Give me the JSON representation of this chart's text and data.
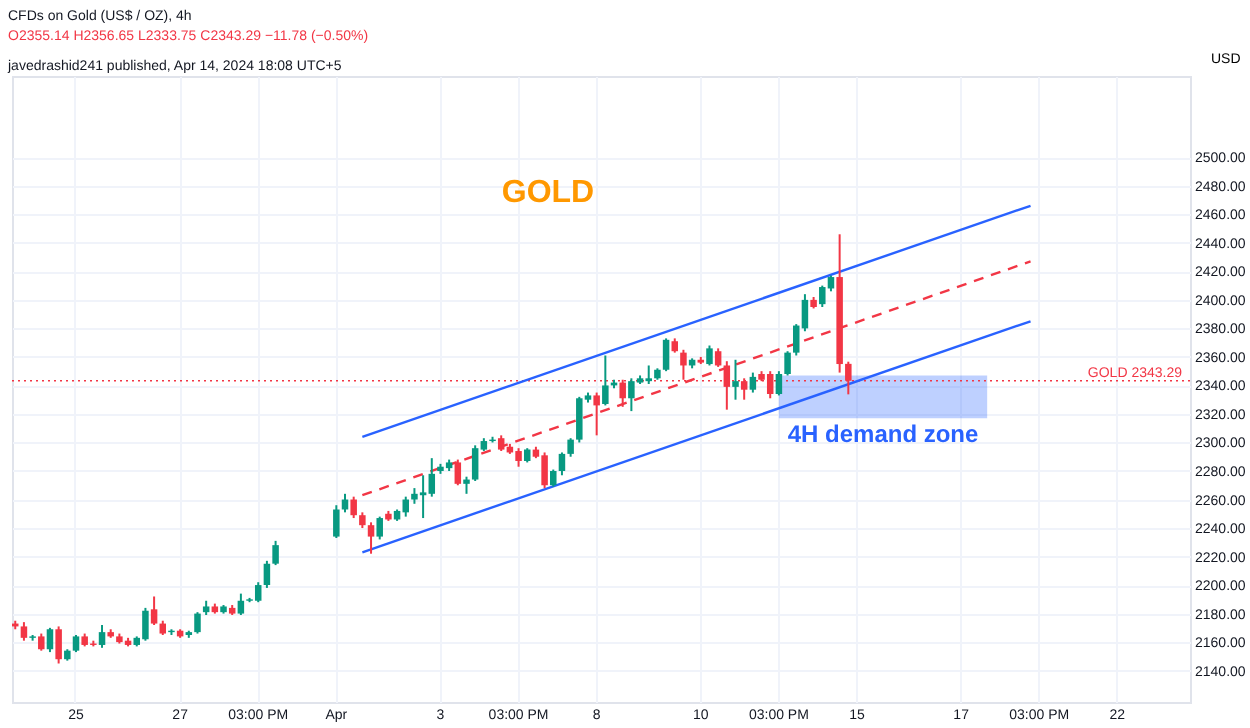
{
  "chart_data": {
    "type": "candlestick",
    "title": "CFDs on Gold (US$ / OZ), 4h",
    "subtitle": "O2355.14 H2356.65 L2333.75 C2343.29 −11.78 (−0.50%)",
    "ylabel": "USD",
    "annotations": [
      "javedrashid241 published, Apr 14, 2024 18:08 UTC+5",
      "GOLD"
    ],
    "categories": [
      null,
      null,
      null,
      null,
      null,
      null,
      null,
      "25",
      null,
      null,
      null,
      null,
      null,
      null,
      null,
      null,
      null,
      null,
      null,
      "27",
      null,
      null,
      null,
      null,
      null,
      null,
      null,
      null,
      "03:00 PM",
      null,
      null,
      null,
      null,
      null,
      null,
      null,
      null,
      "Apr",
      null,
      null,
      null,
      null,
      null,
      null,
      null,
      null,
      null,
      null,
      null,
      "3",
      null,
      null,
      null,
      null,
      null,
      null,
      null,
      null,
      "03:00 PM",
      null,
      null,
      null,
      null,
      null,
      null,
      null,
      null,
      "8",
      null,
      null,
      null,
      null,
      null,
      null,
      null,
      null,
      null,
      null,
      null,
      "10",
      null,
      null,
      null,
      null,
      null,
      null,
      null,
      null,
      "03:00 PM",
      null,
      null,
      null,
      null,
      null,
      null,
      null,
      null,
      "15",
      null,
      null,
      null,
      null,
      null,
      null,
      null,
      null,
      null,
      null,
      null,
      "17",
      null,
      null,
      null,
      null,
      null,
      null,
      null,
      null,
      "03:00 PM",
      null,
      null,
      null,
      null,
      null,
      null,
      null,
      null,
      "22",
      null,
      null,
      null,
      null,
      null,
      null,
      null,
      null
    ],
    "ohlc": [
      [
        2173,
        2175,
        2169,
        2171
      ],
      [
        2171,
        2174,
        2161,
        2163
      ],
      [
        2163,
        2165,
        2161,
        2164
      ],
      [
        2164,
        2166,
        2154,
        2155
      ],
      [
        2155,
        2170,
        2153,
        2169
      ],
      [
        2169,
        2171,
        2145,
        2148
      ],
      [
        2148,
        2155,
        2147,
        2154
      ],
      [
        2154,
        2165,
        2153,
        2164
      ],
      [
        2164,
        2166,
        2157,
        2158
      ],
      [
        2159,
        2161,
        2157,
        2158
      ],
      [
        2158,
        2172,
        2156,
        2167
      ],
      [
        2167,
        2169,
        2163,
        2164
      ],
      [
        2164,
        2166,
        2159,
        2160
      ],
      [
        2161,
        2163,
        2157,
        2158
      ],
      [
        2158,
        2164,
        2157,
        2163
      ],
      [
        2162,
        2184,
        2161,
        2182
      ],
      [
        2183,
        2192,
        2172,
        2173
      ],
      [
        2173,
        2175,
        2165,
        2166
      ],
      [
        2167,
        2169,
        2165,
        2168
      ],
      [
        2168,
        2169,
        2163,
        2164
      ],
      [
        2165,
        2168,
        2163,
        2167
      ],
      [
        2167,
        2181,
        2166,
        2180
      ],
      [
        2181,
        2189,
        2179,
        2185
      ],
      [
        2185,
        2187,
        2180,
        2181
      ],
      [
        2181,
        2186,
        2180,
        2185
      ],
      [
        2184,
        2186,
        2179,
        2180
      ],
      [
        2180,
        2194,
        2179,
        2189
      ],
      [
        2189,
        2191,
        2188,
        2190
      ],
      [
        2189,
        2202,
        2188,
        2200
      ],
      [
        2200,
        2217,
        2198,
        2215
      ],
      [
        2215,
        2231,
        2214,
        2228
      ],
      null,
      null,
      null,
      null,
      null,
      null,
      [
        2234,
        2256,
        2233,
        2253
      ],
      [
        2253,
        2264,
        2251,
        2260
      ],
      [
        2260,
        2262,
        2247,
        2249
      ],
      [
        2249,
        2251,
        2240,
        2242
      ],
      [
        2242,
        2244,
        2222,
        2234
      ],
      [
        2234,
        2248,
        2232,
        2247
      ],
      [
        2250,
        2252,
        2245,
        2246
      ],
      [
        2246,
        2253,
        2245,
        2252
      ],
      [
        2251,
        2262,
        2248,
        2260
      ],
      [
        2260,
        2268,
        2257,
        2264
      ],
      [
        2263,
        2277,
        2247,
        2265
      ],
      [
        2264,
        2289,
        2262,
        2278
      ],
      [
        2280,
        2285,
        2278,
        2283
      ],
      [
        2282,
        2288,
        2280,
        2286
      ],
      [
        2286,
        2288,
        2270,
        2271
      ],
      [
        2271,
        2276,
        2264,
        2274
      ],
      [
        2274,
        2298,
        2273,
        2296
      ],
      [
        2295,
        2303,
        2294,
        2301
      ],
      [
        2301,
        2304,
        2300,
        2302
      ],
      [
        2303,
        2305,
        2294,
        2295
      ],
      [
        2297,
        2299,
        2292,
        2293
      ],
      [
        2294,
        2296,
        2283,
        2287
      ],
      [
        2287,
        2296,
        2286,
        2295
      ],
      [
        2295,
        2297,
        2289,
        2290
      ],
      [
        2291,
        2293,
        2268,
        2270
      ],
      [
        2270,
        2281,
        2269,
        2280
      ],
      [
        2280,
        2293,
        2277,
        2292
      ],
      [
        2292,
        2303,
        2290,
        2302
      ],
      [
        2302,
        2332,
        2300,
        2331
      ],
      [
        2330,
        2335,
        2328,
        2333
      ],
      [
        2333,
        2335,
        2305,
        2326
      ],
      [
        2327,
        2361,
        2326,
        2340
      ],
      [
        2340,
        2344,
        2338,
        2342
      ],
      [
        2342,
        2344,
        2325,
        2331
      ],
      [
        2331,
        2345,
        2322,
        2343
      ],
      [
        2342,
        2347,
        2341,
        2345
      ],
      [
        2343,
        2354,
        2341,
        2345
      ],
      [
        2345,
        2352,
        2344,
        2351
      ],
      [
        2351,
        2373,
        2350,
        2372
      ],
      [
        2371,
        2373,
        2363,
        2364
      ],
      [
        2363,
        2365,
        2344,
        2354
      ],
      [
        2354,
        2359,
        2352,
        2358
      ],
      [
        2358,
        2360,
        2355,
        2356
      ],
      [
        2355,
        2368,
        2354,
        2366
      ],
      [
        2364,
        2366,
        2353,
        2354
      ],
      [
        2354,
        2357,
        2323,
        2339
      ],
      [
        2339,
        2358,
        2330,
        2343
      ],
      [
        2343,
        2345,
        2330,
        2337
      ],
      [
        2337,
        2349,
        2335,
        2346
      ],
      [
        2348,
        2350,
        2343,
        2344
      ],
      [
        2348,
        2350,
        2331,
        2334
      ],
      [
        2334,
        2350,
        2333,
        2348
      ],
      [
        2348,
        2364,
        2347,
        2363
      ],
      [
        2363,
        2383,
        2361,
        2382
      ],
      [
        2380,
        2404,
        2378,
        2400
      ],
      [
        2400,
        2402,
        2394,
        2395
      ],
      [
        2397,
        2410,
        2395,
        2409
      ],
      [
        2408,
        2417,
        2406,
        2416
      ],
      [
        2416,
        2446,
        2349,
        2355
      ],
      [
        2355.14,
        2356.65,
        2333.75,
        2343.29
      ],
      null,
      null,
      null,
      null,
      null,
      null,
      null,
      null,
      null,
      null,
      null,
      null,
      null,
      null,
      null,
      null,
      null,
      null,
      null,
      null,
      null,
      null,
      null,
      null,
      null,
      null,
      null,
      null,
      null,
      null,
      null,
      null,
      null,
      null,
      null,
      null,
      null,
      null,
      null
    ],
    "colors": [
      "#f23645",
      "#f23645",
      "#089981",
      "#f23645",
      "#089981",
      "#f23645",
      "#089981",
      "#089981",
      "#f23645",
      "#f23645",
      "#089981",
      "#f23645",
      "#f23645",
      "#f23645",
      "#089981",
      "#089981",
      "#f23645",
      "#f23645",
      "#089981",
      "#f23645",
      "#089981",
      "#089981",
      "#089981",
      "#f23645",
      "#089981",
      "#f23645",
      "#089981",
      "#089981",
      "#089981",
      "#089981",
      "#089981",
      null,
      null,
      null,
      null,
      null,
      null,
      "#089981",
      "#089981",
      "#f23645",
      "#f23645",
      "#f23645",
      "#089981",
      "#f23645",
      "#089981",
      "#089981",
      "#089981",
      "#089981",
      "#089981",
      "#089981",
      "#089981",
      "#f23645",
      "#089981",
      "#089981",
      "#089981",
      "#089981",
      "#f23645",
      "#f23645",
      "#f23645",
      "#089981",
      "#f23645",
      "#f23645",
      "#089981",
      "#089981",
      "#089981",
      "#089981",
      "#089981",
      "#f23645",
      "#089981",
      "#089981",
      "#f23645",
      "#089981",
      "#089981",
      "#089981",
      "#089981",
      "#089981",
      "#f23645",
      "#f23645",
      "#089981",
      "#f23645",
      "#089981",
      "#f23645",
      "#f23645",
      "#089981",
      "#f23645",
      "#089981",
      "#f23645",
      "#f23645",
      "#089981",
      "#089981",
      "#089981",
      "#089981",
      "#f23645",
      "#089981",
      "#089981",
      "#f23645",
      "#f23645",
      null,
      null,
      null,
      null,
      null,
      null,
      null,
      null,
      null,
      null,
      null,
      null,
      null,
      null,
      null,
      null,
      null,
      null,
      null,
      null,
      null,
      null,
      null,
      null,
      null,
      null,
      null,
      null,
      null,
      null,
      null,
      null,
      null,
      null,
      null,
      null,
      null,
      null,
      null
    ],
    "series": [
      {
        "type": "line",
        "color": "#2962ff",
        "line_style": "solid",
        "values": [
          null,
          null,
          null,
          null,
          null,
          null,
          null,
          null,
          null,
          null,
          null,
          null,
          null,
          null,
          null,
          null,
          null,
          null,
          null,
          null,
          null,
          null,
          null,
          null,
          null,
          null,
          null,
          null,
          null,
          null,
          null,
          null,
          null,
          null,
          null,
          null,
          null,
          null,
          null,
          null,
          2304,
          null,
          null,
          null,
          null,
          null,
          null,
          null,
          null,
          null,
          null,
          null,
          null,
          null,
          null,
          null,
          null,
          null,
          null,
          null,
          null,
          null,
          null,
          null,
          null,
          null,
          null,
          null,
          null,
          null,
          null,
          null,
          null,
          null,
          null,
          null,
          null,
          null,
          null,
          null,
          null,
          null,
          null,
          null,
          null,
          null,
          null,
          null,
          null,
          null,
          null,
          null,
          null,
          null,
          null,
          null,
          null,
          null,
          null,
          null,
          null,
          null,
          null,
          null,
          null,
          null,
          null,
          null,
          null,
          null,
          null,
          null,
          null,
          null,
          null,
          null,
          null,
          2466,
          null,
          null,
          null,
          null,
          null,
          null,
          null,
          null,
          null,
          null,
          null,
          null,
          null,
          null,
          null,
          null,
          null,
          null
        ]
      },
      {
        "type": "line",
        "color": "#f23645",
        "line_style": "dashed",
        "values": [
          null,
          null,
          null,
          null,
          null,
          null,
          null,
          null,
          null,
          null,
          null,
          null,
          null,
          null,
          null,
          null,
          null,
          null,
          null,
          null,
          null,
          null,
          null,
          null,
          null,
          null,
          null,
          null,
          null,
          null,
          null,
          null,
          null,
          null,
          null,
          null,
          null,
          null,
          null,
          null,
          2263,
          null,
          null,
          null,
          null,
          null,
          null,
          null,
          null,
          null,
          null,
          null,
          null,
          null,
          null,
          null,
          null,
          null,
          null,
          null,
          null,
          null,
          null,
          null,
          null,
          null,
          null,
          null,
          null,
          null,
          null,
          null,
          null,
          null,
          null,
          null,
          null,
          null,
          null,
          null,
          null,
          null,
          null,
          null,
          null,
          null,
          null,
          null,
          null,
          null,
          null,
          null,
          null,
          null,
          null,
          null,
          null,
          null,
          null,
          null,
          null,
          null,
          null,
          null,
          null,
          null,
          null,
          null,
          null,
          null,
          null,
          null,
          null,
          null,
          null,
          null,
          null,
          2427,
          null,
          null,
          null,
          null,
          null,
          null,
          null,
          null,
          null,
          null,
          null,
          null,
          null,
          null,
          null,
          null,
          null,
          null
        ]
      },
      {
        "type": "line",
        "color": "#2962ff",
        "line_style": "solid",
        "values": [
          null,
          null,
          null,
          null,
          null,
          null,
          null,
          null,
          null,
          null,
          null,
          null,
          null,
          null,
          null,
          null,
          null,
          null,
          null,
          null,
          null,
          null,
          null,
          null,
          null,
          null,
          null,
          null,
          null,
          null,
          null,
          null,
          null,
          null,
          null,
          null,
          null,
          null,
          null,
          null,
          2223,
          null,
          null,
          null,
          null,
          null,
          null,
          null,
          null,
          null,
          null,
          null,
          null,
          null,
          null,
          null,
          null,
          null,
          null,
          null,
          null,
          null,
          null,
          null,
          null,
          null,
          null,
          null,
          null,
          null,
          null,
          null,
          null,
          null,
          null,
          null,
          null,
          null,
          null,
          null,
          null,
          null,
          null,
          null,
          null,
          null,
          null,
          null,
          null,
          null,
          null,
          null,
          null,
          null,
          null,
          null,
          null,
          null,
          null,
          null,
          null,
          null,
          null,
          null,
          null,
          null,
          null,
          null,
          null,
          null,
          null,
          null,
          null,
          null,
          null,
          null,
          null,
          2385,
          null,
          null,
          null,
          null,
          null,
          null,
          null,
          null,
          null,
          null,
          null,
          null,
          null,
          null,
          null,
          null,
          null,
          null
        ]
      }
    ],
    "ref_lines": [
      {
        "axis": "y",
        "value": 2343.29,
        "label": "GOLD 2343.29",
        "color": "#f23645",
        "line_style": "dotted"
      }
    ],
    "bands": [
      {
        "axis": "y",
        "from": 2317,
        "to": 2347,
        "label": "4H demand zone",
        "color": "#2962ff"
      }
    ],
    "ylim": [
      2118,
      2557
    ],
    "yticks": [
      {
        "value": 2140,
        "label": "2140.00"
      },
      {
        "value": 2160,
        "label": "2160.00"
      },
      {
        "value": 2180,
        "label": "2180.00"
      },
      {
        "value": 2200,
        "label": "2200.00"
      },
      {
        "value": 2220,
        "label": "2220.00"
      },
      {
        "value": 2240,
        "label": "2240.00"
      },
      {
        "value": 2260,
        "label": "2260.00"
      },
      {
        "value": 2280,
        "label": "2280.00"
      },
      {
        "value": 2300,
        "label": "2300.00"
      },
      {
        "value": 2320,
        "label": "2320.00"
      },
      {
        "value": 2340,
        "label": "2340.00"
      },
      {
        "value": 2360,
        "label": "2360.00"
      },
      {
        "value": 2380,
        "label": "2380.00"
      },
      {
        "value": 2400,
        "label": "2400.00"
      },
      {
        "value": 2420,
        "label": "2420.00"
      },
      {
        "value": 2440,
        "label": "2440.00"
      },
      {
        "value": 2460,
        "label": "2460.00"
      },
      {
        "value": 2480,
        "label": "2480.00"
      },
      {
        "value": 2500,
        "label": "2500.00"
      }
    ],
    "grid": true
  }
}
